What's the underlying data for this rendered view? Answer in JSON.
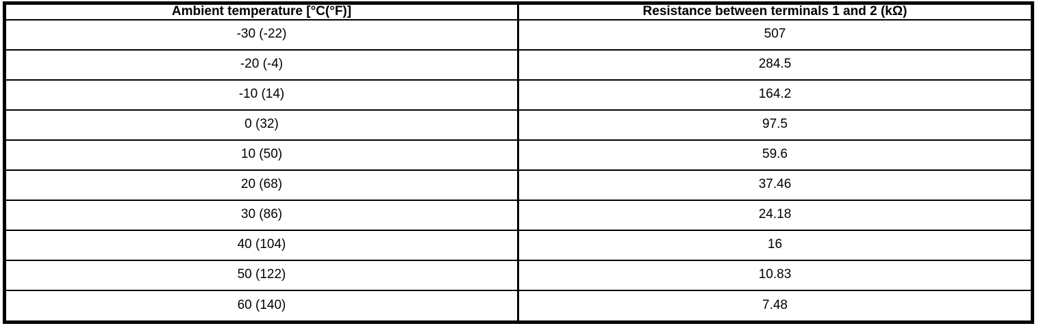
{
  "table": {
    "columns": [
      "Ambient temperature [°C(°F)]",
      "Resistance between terminals 1 and 2 (kΩ)"
    ],
    "rows": [
      {
        "temperature": "-30 (-22)",
        "resistance": "507"
      },
      {
        "temperature": "-20 (-4)",
        "resistance": "284.5"
      },
      {
        "temperature": "-10 (14)",
        "resistance": "164.2"
      },
      {
        "temperature": "0 (32)",
        "resistance": "97.5"
      },
      {
        "temperature": "10 (50)",
        "resistance": "59.6"
      },
      {
        "temperature": "20 (68)",
        "resistance": "37.46"
      },
      {
        "temperature": "30 (86)",
        "resistance": "24.18"
      },
      {
        "temperature": "40 (104)",
        "resistance": "16"
      },
      {
        "temperature": "50 (122)",
        "resistance": "10.83"
      },
      {
        "temperature": "60 (140)",
        "resistance": "7.48"
      }
    ],
    "colors": {
      "border": "#000000",
      "text": "#000000",
      "background": "#ffffff"
    }
  }
}
